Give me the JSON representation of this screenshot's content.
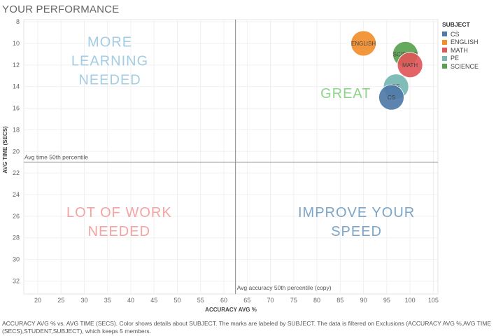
{
  "header": {
    "title": "YOUR PERFORMANCE"
  },
  "legend": {
    "title": "SUBJECT",
    "items": [
      {
        "label": "CS",
        "color": "#4e79a7"
      },
      {
        "label": "ENGLISH",
        "color": "#f28e2b"
      },
      {
        "label": "MATH",
        "color": "#e15759"
      },
      {
        "label": "PE",
        "color": "#76b7b2"
      },
      {
        "label": "SCIENCE",
        "color": "#59a14f"
      }
    ]
  },
  "quadrants": [
    {
      "lines": [
        "MORE",
        "LEARNING",
        "NEEDED"
      ],
      "color": "#a3cde3",
      "x": 35.5,
      "y": 11.6
    },
    {
      "lines": [
        "GREAT"
      ],
      "color": "#8fd48a",
      "x": 86.2,
      "y": 14.6
    },
    {
      "lines": [
        "LOT OF WORK",
        "NEEDED"
      ],
      "color": "#f6a3a3",
      "x": 37.5,
      "y": 26.5
    },
    {
      "lines": [
        "IMPROVE YOUR",
        "SPEED"
      ],
      "color": "#7ca6c9",
      "x": 88.5,
      "y": 26.5
    }
  ],
  "reference_lines": {
    "horizontal": {
      "value": 21,
      "label": "Avg time 50th percentile"
    },
    "vertical": {
      "value": 62.5,
      "label": "Avg accuracy 50th percentile (copy)"
    }
  },
  "caption": "ACCURACY AVG % vs. AVG TIME (SECS).  Color shows details about SUBJECT.  The marks are labeled by SUBJECT. The data is filtered on Exclusions (ACCURACY AVG %,AVG TIME (SECS),STUDENT,SUBJECT), which keeps 5 members.",
  "chart_data": {
    "type": "scatter",
    "title": "YOUR PERFORMANCE",
    "xlabel": "ACCURACY AVG %",
    "ylabel": "AVG TIME (SECS)",
    "xlim": [
      17,
      106
    ],
    "ylim": [
      33.2,
      7.8
    ],
    "y_inverted": true,
    "x_ticks": [
      20,
      25,
      30,
      35,
      40,
      45,
      50,
      55,
      60,
      65,
      70,
      75,
      80,
      85,
      90,
      95,
      100,
      105
    ],
    "y_ticks": [
      8,
      10,
      12,
      14,
      16,
      18,
      20,
      22,
      24,
      26,
      28,
      30,
      32
    ],
    "grid": true,
    "legend_position": "right",
    "points": [
      {
        "label": "ENGLISH",
        "x": 90,
        "y": 10,
        "color": "#f28e2b"
      },
      {
        "label": "SCIENCE",
        "x": 99,
        "y": 11,
        "color": "#59a14f"
      },
      {
        "label": "MATH",
        "x": 100,
        "y": 12,
        "color": "#e15759"
      },
      {
        "label": "PE",
        "x": 97,
        "y": 14,
        "color": "#76b7b2"
      },
      {
        "label": "CS",
        "x": 96,
        "y": 15,
        "color": "#4e79a7"
      }
    ]
  }
}
